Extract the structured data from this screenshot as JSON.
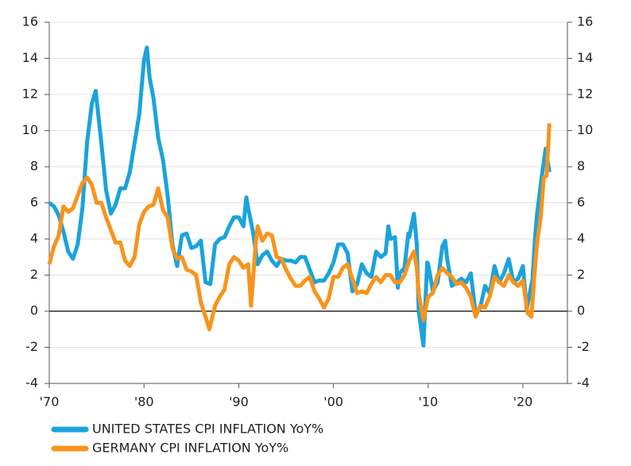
{
  "chart_data": {
    "type": "line",
    "series": [
      {
        "name": "UNITED STATES CPI INFLATION YoY%",
        "color": "#1ba3dc",
        "x": [
          1970,
          1970.5,
          1971,
          1971.5,
          1972,
          1972.5,
          1973,
          1973.5,
          1974,
          1974.5,
          1974.9,
          1975.5,
          1976,
          1976.5,
          1977,
          1977.5,
          1978,
          1978.5,
          1979,
          1979.5,
          1980,
          1980.3,
          1980.6,
          1981,
          1981.5,
          1982,
          1982.5,
          1983,
          1983.5,
          1984,
          1984.5,
          1985,
          1985.5,
          1986,
          1986.5,
          1987,
          1987.5,
          1988,
          1988.5,
          1989,
          1989.5,
          1990,
          1990.5,
          1990.8,
          1991,
          1991.5,
          1992,
          1992.5,
          1993,
          1993.5,
          1994,
          1994.5,
          1995,
          1995.5,
          1996,
          1996.5,
          1997,
          1997.5,
          1998,
          1998.5,
          1999,
          1999.5,
          2000,
          2000.5,
          2001,
          2001.5,
          2002,
          2002.5,
          2003,
          2003.5,
          2004,
          2004.5,
          2005,
          2005.5,
          2005.8,
          2006,
          2006.5,
          2006.8,
          2007,
          2007.5,
          2007.9,
          2008,
          2008.5,
          2008.8,
          2009,
          2009.5,
          2009.9,
          2010,
          2010.5,
          2011,
          2011.5,
          2011.8,
          2012,
          2012.5,
          2013,
          2013.5,
          2014,
          2014.5,
          2015,
          2015.5,
          2016,
          2016.5,
          2017,
          2017.5,
          2018,
          2018.5,
          2019,
          2019.5,
          2020,
          2020.4,
          2020.8,
          2021,
          2021.3,
          2021.5,
          2022,
          2022.4,
          2022.8
        ],
        "values": [
          6.0,
          5.8,
          5.3,
          4.4,
          3.3,
          2.9,
          3.7,
          5.7,
          9.4,
          11.5,
          12.2,
          9.3,
          6.7,
          5.4,
          5.9,
          6.8,
          6.8,
          7.7,
          9.3,
          10.9,
          13.9,
          14.6,
          12.9,
          11.8,
          9.6,
          8.4,
          6.4,
          3.7,
          2.5,
          4.2,
          4.3,
          3.5,
          3.6,
          3.9,
          1.6,
          1.5,
          3.7,
          4.0,
          4.1,
          4.7,
          5.2,
          5.2,
          4.7,
          6.3,
          5.7,
          4.4,
          2.6,
          3.1,
          3.3,
          2.8,
          2.5,
          2.9,
          2.8,
          2.8,
          2.7,
          3.0,
          3.0,
          2.3,
          1.6,
          1.7,
          1.7,
          2.1,
          2.7,
          3.7,
          3.7,
          3.2,
          1.1,
          1.5,
          2.6,
          2.1,
          1.9,
          3.3,
          3.0,
          3.2,
          4.7,
          4.0,
          4.1,
          1.3,
          2.1,
          2.4,
          4.3,
          4.1,
          5.4,
          3.7,
          0.0,
          -1.9,
          2.7,
          2.6,
          1.1,
          1.6,
          3.6,
          3.9,
          2.9,
          1.4,
          1.6,
          1.8,
          1.6,
          2.1,
          -0.1,
          0.2,
          1.4,
          1.0,
          2.5,
          1.6,
          2.1,
          2.9,
          1.6,
          1.8,
          2.5,
          0.1,
          1.2,
          1.7,
          4.2,
          5.4,
          7.5,
          9.0,
          7.7
        ]
      },
      {
        "name": "GERMANY CPI INFLATION YoY%",
        "color": "#f7941d",
        "axis": "y2",
        "x": [
          1970,
          1970.5,
          1971,
          1971.5,
          1972,
          1972.5,
          1973,
          1973.5,
          1974,
          1974.5,
          1975,
          1975.5,
          1976,
          1976.5,
          1977,
          1977.5,
          1978,
          1978.5,
          1979,
          1979.5,
          1980,
          1980.5,
          1981,
          1981.5,
          1982,
          1982.5,
          1983,
          1983.5,
          1984,
          1984.5,
          1985,
          1985.5,
          1986,
          1986.5,
          1986.9,
          1987.5,
          1988,
          1988.5,
          1989,
          1989.5,
          1990,
          1990.5,
          1991,
          1991.3,
          1991.8,
          1992,
          1992.5,
          1993,
          1993.5,
          1994,
          1994.5,
          1995,
          1995.5,
          1996,
          1996.5,
          1997,
          1997.5,
          1998,
          1998.5,
          1999,
          1999.5,
          2000,
          2000.5,
          2001,
          2001.5,
          2002,
          2002.5,
          2003,
          2003.5,
          2004,
          2004.5,
          2005,
          2005.5,
          2006,
          2006.5,
          2007,
          2007.5,
          2008,
          2008.5,
          2008.8,
          2009,
          2009.5,
          2010,
          2010.5,
          2011,
          2011.5,
          2012,
          2012.5,
          2013,
          2013.5,
          2014,
          2014.5,
          2015,
          2015.5,
          2016,
          2016.5,
          2017,
          2017.5,
          2018,
          2018.5,
          2019,
          2019.5,
          2020,
          2020.5,
          2020.9,
          2021.2,
          2021.5,
          2021.9,
          2022.2,
          2022.5,
          2022.8
        ],
        "values": [
          2.6,
          3.6,
          4.2,
          5.8,
          5.5,
          5.7,
          6.4,
          7.1,
          7.4,
          7.0,
          6.0,
          6.0,
          5.2,
          4.5,
          3.8,
          3.8,
          2.8,
          2.5,
          3.0,
          4.8,
          5.5,
          5.8,
          5.9,
          6.8,
          5.6,
          5.2,
          3.5,
          2.9,
          3.0,
          2.3,
          2.2,
          2.0,
          0.5,
          -0.3,
          -1.0,
          0.3,
          0.8,
          1.2,
          2.6,
          3.0,
          2.8,
          2.4,
          2.6,
          0.3,
          3.8,
          4.7,
          3.9,
          4.3,
          4.2,
          3.0,
          2.9,
          2.3,
          1.8,
          1.4,
          1.4,
          1.7,
          1.9,
          1.1,
          0.7,
          0.2,
          0.7,
          1.9,
          1.9,
          2.4,
          2.6,
          1.8,
          1.0,
          1.1,
          1.0,
          1.5,
          1.9,
          1.6,
          2.0,
          2.0,
          1.6,
          1.6,
          2.0,
          2.8,
          3.3,
          2.4,
          1.0,
          -0.5,
          0.8,
          1.0,
          2.0,
          2.4,
          2.1,
          1.9,
          1.5,
          1.6,
          1.3,
          0.8,
          -0.3,
          0.3,
          0.2,
          0.8,
          1.9,
          1.6,
          1.4,
          2.0,
          1.6,
          1.4,
          1.7,
          -0.1,
          -0.3,
          1.9,
          3.8,
          5.3,
          7.4,
          7.5,
          10.4
        ]
      }
    ],
    "xlim": [
      1970,
      2024.7
    ],
    "xticks": [
      {
        "value": 1970,
        "label": "'70"
      },
      {
        "value": 1980,
        "label": "'80"
      },
      {
        "value": 1990,
        "label": "'90"
      },
      {
        "value": 2000,
        "label": "'00"
      },
      {
        "value": 2010,
        "label": "'10"
      },
      {
        "value": 2020,
        "label": "'20"
      }
    ],
    "ylim": [
      -4,
      16
    ],
    "yticks": [
      -4,
      -2,
      0,
      2,
      4,
      6,
      8,
      10,
      12,
      14,
      16
    ],
    "y2lim": [
      -4,
      16
    ],
    "y2ticks": [
      -4,
      -2,
      0,
      2,
      4,
      6,
      8,
      10,
      12,
      14,
      16
    ],
    "grid": true
  }
}
